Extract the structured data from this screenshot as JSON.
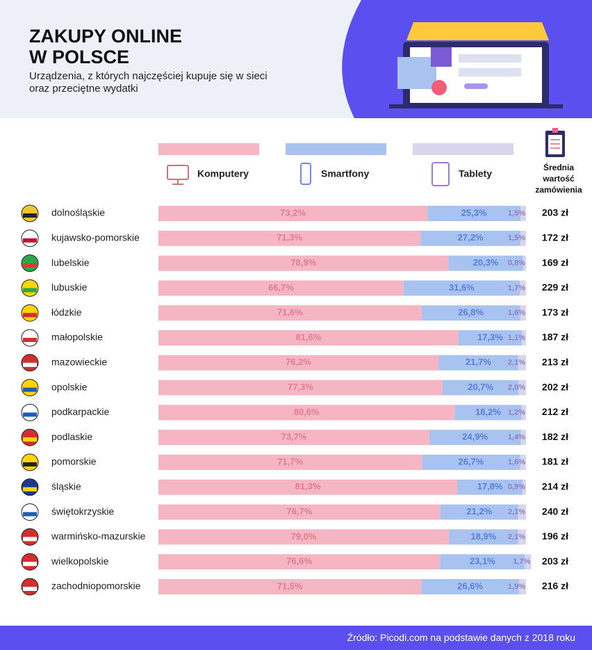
{
  "header": {
    "title_lines": [
      "ZAKUPY ONLINE",
      "W POLSCE"
    ],
    "subtitle_lines": [
      "Urządzenia, z których najczęściej kupuje się w sieci",
      "oraz przeciętne wydatki"
    ]
  },
  "chart_data": {
    "type": "stacked-bar-horizontal",
    "categories": [
      "dolnośląskie",
      "kujawsko-pomorskie",
      "lubelskie",
      "lubuskie",
      "łódzkie",
      "małopolskie",
      "mazowieckie",
      "opolskie",
      "podkarpackie",
      "podlaskie",
      "pomorskie",
      "śląskie",
      "świętokrzyskie",
      "warmińsko-mazurskie",
      "wielkopolskie",
      "zachodniopomorskie"
    ],
    "xlim": [
      0,
      100
    ],
    "series": [
      {
        "name": "Komputery",
        "color": "#f6b5c2",
        "label_color": "#e07d93",
        "values": [
          73.2,
          71.3,
          78.9,
          66.7,
          71.6,
          81.6,
          76.2,
          77.3,
          80.6,
          73.7,
          71.7,
          81.3,
          76.7,
          79.0,
          76.6,
          71.5
        ],
        "value_labels": [
          "73,2%",
          "71,3%",
          "78,9%",
          "66,7%",
          "71,6%",
          "81,6%",
          "76,2%",
          "77,3%",
          "80,6%",
          "73,7%",
          "71,7%",
          "81,3%",
          "76,7%",
          "79,0%",
          "76,6%",
          "71,5%"
        ]
      },
      {
        "name": "Smartfony",
        "color": "#a8c3f0",
        "label_color": "#5a7fd8",
        "values": [
          25.3,
          27.2,
          20.3,
          31.6,
          26.8,
          17.3,
          21.7,
          20.7,
          18.2,
          24.9,
          26.7,
          17.8,
          21.2,
          18.9,
          23.1,
          26.6
        ],
        "value_labels": [
          "25,3%",
          "27,2%",
          "20,3%",
          "31,6%",
          "26,8%",
          "17,3%",
          "21,7%",
          "20,7%",
          "18,2%",
          "24,9%",
          "26,7%",
          "17,8%",
          "21,2%",
          "18,9%",
          "23,1%",
          "26,6%"
        ]
      },
      {
        "name": "Tablety",
        "color": "#d8d5ec",
        "label_color": "#8f7cc8",
        "values": [
          1.5,
          1.5,
          0.8,
          1.7,
          1.6,
          1.1,
          2.1,
          2.0,
          1.2,
          1.4,
          1.6,
          0.9,
          2.1,
          2.1,
          1.7,
          1.9
        ],
        "value_labels": [
          "1,5%",
          "1,5%",
          "0,8%",
          "1,7%",
          "1,6%",
          "1,1%",
          "2,1%",
          "2,0%",
          "1,2%",
          "1,4%",
          "1,6%",
          "0,9%",
          "2,1%",
          "2,1%",
          "1,7%",
          "1,9%"
        ]
      }
    ],
    "order_value": {
      "name": "Średnia wartość zamówienia",
      "values": [
        203,
        172,
        169,
        229,
        173,
        187,
        213,
        202,
        212,
        182,
        181,
        214,
        240,
        196,
        203,
        216
      ],
      "value_labels": [
        "203 zł",
        "172 zł",
        "169 zł",
        "229 zł",
        "173 zł",
        "187 zł",
        "213 zł",
        "202 zł",
        "212 zł",
        "182 zł",
        "181 zł",
        "214 zł",
        "240 zł",
        "196 zł",
        "203 zł",
        "216 zł"
      ]
    }
  },
  "footer": {
    "source": "Źródło: Picodi.com na podstawie danych z 2018 roku"
  }
}
